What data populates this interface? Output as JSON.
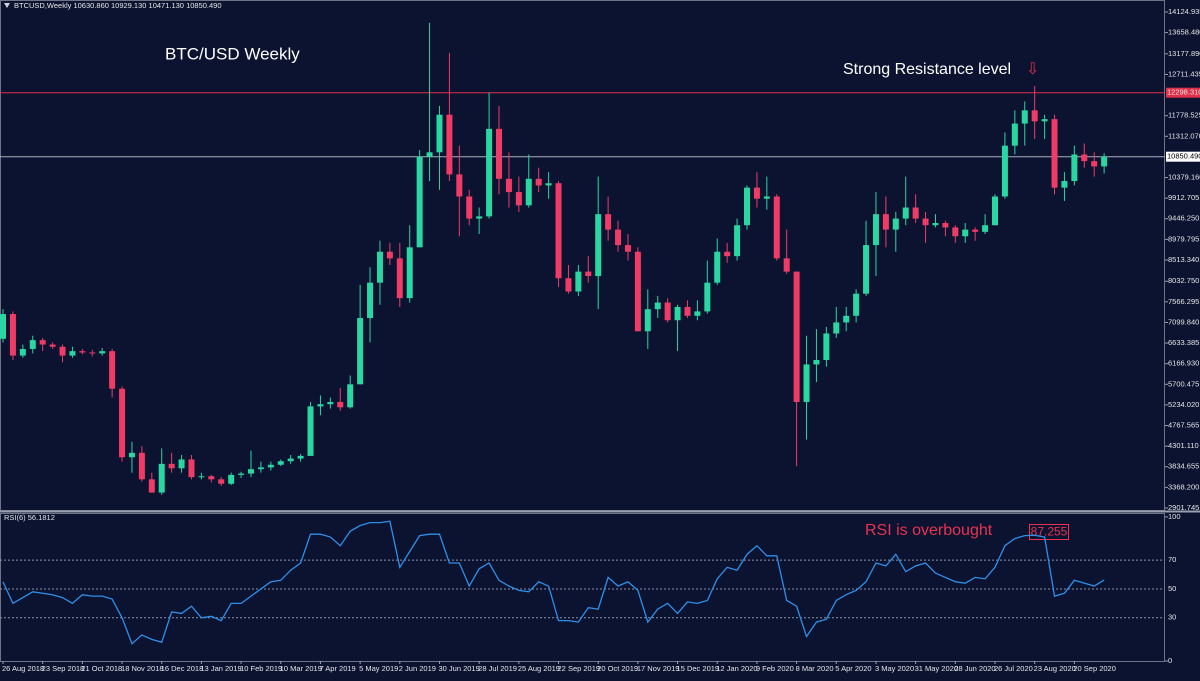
{
  "chart_data": {
    "type": "candlestick",
    "header": "BTCUSD,Weekly  10630.860 10929.130 10471.130 10850.490",
    "title": "BTC/USD Weekly",
    "annotation_resistance": "Strong Resistance level",
    "annotation_arrow": "⇩",
    "annotation_rsi": "RSI is overbought",
    "annotation_rsi_value": "87.255",
    "rsi_header": "RSI(6) 56.1812",
    "categories": [
      "26 Aug 2018",
      null,
      null,
      null,
      "23 Sep 2018",
      null,
      null,
      null,
      "21 Oct 2018",
      null,
      null,
      null,
      "18 Nov 2018",
      null,
      null,
      null,
      "16 Dec 2018",
      null,
      null,
      null,
      "13 Jan 2019",
      null,
      null,
      null,
      "10 Feb 2019",
      null,
      null,
      null,
      "10 Mar 2019",
      null,
      null,
      null,
      "7 Apr 2019",
      null,
      null,
      null,
      "5 May 2019",
      null,
      null,
      null,
      "2 Jun 2019",
      null,
      null,
      null,
      "30 Jun 2019",
      null,
      null,
      null,
      "28 Jul 2019",
      null,
      null,
      null,
      "25 Aug 2019",
      null,
      null,
      null,
      "22 Sep 2019",
      null,
      null,
      null,
      "20 Oct 2019",
      null,
      null,
      null,
      "17 Nov 2019",
      null,
      null,
      null,
      "15 Dec 2019",
      null,
      null,
      null,
      "12 Jan 2020",
      null,
      null,
      null,
      "9 Feb 2020",
      null,
      null,
      null,
      "8 Mar 2020",
      null,
      null,
      null,
      "5 Apr 2020",
      null,
      null,
      null,
      "3 May 2020",
      null,
      null,
      null,
      "31 May 2020",
      null,
      null,
      null,
      "28 Jun 2020",
      null,
      null,
      null,
      "26 Jul 2020",
      null,
      null,
      null,
      "23 Aug 2020",
      null,
      null,
      null,
      "20 Sep 2020",
      null,
      null,
      null
    ],
    "open": [
      6730,
      7290,
      6350,
      6500,
      6700,
      6600,
      6550,
      6350,
      6450,
      6420,
      6400,
      6450,
      5600,
      4050,
      4150,
      3550,
      3250,
      3900,
      3800,
      4000,
      3600,
      3620,
      3550,
      3450,
      3650,
      3680,
      3780,
      3820,
      3880,
      3960,
      4020,
      4080,
      5200,
      5250,
      5300,
      5180,
      5700,
      7200,
      8000,
      8700,
      8550,
      7650,
      8800,
      10850,
      10950,
      11800,
      10450,
      9950,
      9450,
      9500,
      11480,
      10350,
      10050,
      9750,
      10350,
      10200,
      10250,
      8100,
      7800,
      8250,
      8150,
      9550,
      9200,
      8850,
      8700,
      6900,
      7400,
      7550,
      7150,
      7450,
      7250,
      7350,
      8000,
      8700,
      8600,
      9300,
      10150,
      9900,
      9950,
      8550,
      8250,
      5300,
      6150,
      6250,
      6850,
      7100,
      7250,
      7750,
      8850,
      9550,
      9200,
      9450,
      9700,
      9450,
      9300,
      9350,
      9250,
      9050,
      9200,
      9150,
      9300,
      9950,
      11100,
      11600,
      11900,
      11650,
      11700,
      10150,
      10300,
      10900,
      10750,
      10630.86
    ],
    "high": [
      7400,
      7350,
      6600,
      6800,
      6750,
      6650,
      6600,
      6550,
      6500,
      6480,
      6520,
      6500,
      5650,
      4400,
      4300,
      3700,
      4250,
      4150,
      4100,
      4100,
      3700,
      3650,
      3600,
      3700,
      3720,
      4200,
      3950,
      3950,
      4000,
      4100,
      4120,
      5300,
      5450,
      5400,
      5620,
      5900,
      7950,
      8350,
      8950,
      8900,
      8900,
      9300,
      11000,
      13880,
      12000,
      13200,
      11100,
      10100,
      9700,
      12300,
      12000,
      10950,
      10400,
      10900,
      10600,
      10500,
      10300,
      8400,
      8400,
      8600,
      10400,
      9950,
      9400,
      9100,
      8800,
      7850,
      7700,
      7650,
      7500,
      7600,
      7600,
      8500,
      9000,
      8900,
      9450,
      10200,
      10500,
      10400,
      10000,
      9200,
      8250,
      6800,
      6950,
      7000,
      7450,
      7450,
      7850,
      9400,
      10050,
      9950,
      9600,
      10400,
      10000,
      9600,
      9550,
      9400,
      9300,
      9350,
      9250,
      9550,
      10000,
      11400,
      11900,
      12100,
      12450,
      11800,
      11800,
      10500,
      11100,
      11150,
      10950,
      10929.13
    ],
    "low": [
      6650,
      6250,
      6300,
      6400,
      6450,
      6500,
      6200,
      6300,
      6380,
      6330,
      6350,
      5400,
      3950,
      3700,
      3500,
      3250,
      3200,
      3700,
      3700,
      3550,
      3550,
      3480,
      3400,
      3420,
      3580,
      3600,
      3700,
      3750,
      3850,
      3900,
      3950,
      4080,
      5000,
      5150,
      5100,
      5150,
      5700,
      6650,
      7500,
      8400,
      7450,
      7550,
      8800,
      10300,
      10100,
      10300,
      9050,
      9300,
      9100,
      9450,
      10000,
      9700,
      9600,
      9700,
      10050,
      9900,
      7900,
      7750,
      7700,
      8000,
      7400,
      8950,
      8700,
      8500,
      6900,
      6500,
      7200,
      7100,
      6450,
      7200,
      7150,
      7300,
      7950,
      8450,
      8500,
      9200,
      9700,
      9650,
      8500,
      8200,
      3850,
      4450,
      5750,
      6100,
      6750,
      6900,
      7100,
      7700,
      8150,
      8800,
      8700,
      9300,
      9350,
      8900,
      9250,
      9050,
      8900,
      8900,
      8950,
      9100,
      9300,
      9900,
      10900,
      11100,
      11250,
      11250,
      10000,
      9850,
      10200,
      10600,
      10400,
      10471.13
    ],
    "close": [
      7290,
      6350,
      6500,
      6700,
      6600,
      6550,
      6350,
      6450,
      6420,
      6400,
      6450,
      5600,
      4050,
      4150,
      3550,
      3250,
      3900,
      3800,
      4000,
      3600,
      3620,
      3550,
      3450,
      3650,
      3680,
      3780,
      3820,
      3880,
      3960,
      4020,
      4080,
      5200,
      5250,
      5300,
      5180,
      5700,
      7200,
      8000,
      8700,
      8550,
      7650,
      8800,
      10850,
      10950,
      11800,
      10450,
      9950,
      9450,
      9500,
      11480,
      10350,
      10050,
      9750,
      10350,
      10200,
      10250,
      8100,
      7800,
      8250,
      8150,
      9550,
      9200,
      8850,
      8700,
      6900,
      7400,
      7550,
      7150,
      7450,
      7250,
      7350,
      8000,
      8700,
      8600,
      9300,
      10150,
      9900,
      9950,
      8550,
      8250,
      5300,
      6150,
      6250,
      6850,
      7100,
      7250,
      7750,
      8850,
      9550,
      9200,
      9450,
      9700,
      9450,
      9300,
      9350,
      9250,
      9050,
      9200,
      9150,
      9300,
      9950,
      11100,
      11600,
      11900,
      11650,
      11700,
      10150,
      10300,
      10900,
      10750,
      10630.86,
      10850.49
    ],
    "up_color": "#2ad6a1",
    "down_color": "#f03b66",
    "ylim": [
      2856,
      14396
    ],
    "yticks": [
      14124.935,
      {
        "value": 13658.48,
        "label": "13658.480"
      },
      {
        "value": 13177.89,
        "label": "13177.890"
      },
      12711.435,
      11778.525,
      {
        "value": 11312.07,
        "label": "11312.070"
      },
      {
        "value": 10379.16,
        "label": "10379.160"
      },
      9912.705,
      {
        "value": 9446.25,
        "label": "9446.250"
      },
      {
        "value": 8979.795,
        "label": "8979.795"
      },
      {
        "value": 8513.34,
        "label": "8513.340"
      },
      {
        "value": 8032.75,
        "label": "8032.750"
      },
      7566.295,
      {
        "value": 7099.84,
        "label": "7099.840"
      },
      {
        "value": 6633.385,
        "label": "6633.385"
      },
      {
        "value": 6166.93,
        "label": "6166.930"
      },
      {
        "value": 5700.475,
        "label": "5700.475"
      },
      {
        "value": 5234.02,
        "label": "5234.020"
      },
      4767.565,
      {
        "value": 4301.11,
        "label": "4301.110"
      },
      3834.655,
      {
        "value": 3368.2,
        "label": "3368.200"
      },
      2901.745
    ],
    "resistance": {
      "value": 12298.31,
      "label": "12298.310"
    },
    "resistance_color": "#e02f49",
    "current_price": {
      "value": 10850.49,
      "label": "10850.490"
    },
    "rsi": {
      "color": "#2f8fe8",
      "values": [
        55,
        40,
        44,
        48,
        47,
        46,
        44,
        40,
        46,
        45,
        45,
        43,
        30,
        12,
        18,
        15,
        13,
        34,
        33,
        38,
        30,
        31,
        28,
        40,
        40,
        45,
        50,
        55,
        56,
        63,
        68,
        88,
        88,
        86,
        80,
        90,
        94,
        96,
        96,
        97,
        65,
        76,
        87,
        88,
        88,
        68,
        68,
        52,
        64,
        68,
        56,
        52,
        49,
        48,
        55,
        52,
        28,
        28,
        27,
        37,
        36,
        58,
        52,
        55,
        49,
        27,
        36,
        40,
        33,
        41,
        40,
        42,
        57,
        65,
        63,
        74,
        80,
        73,
        73,
        42,
        38,
        17,
        27,
        29,
        42,
        46,
        49,
        55,
        68,
        66,
        74,
        62,
        66,
        68,
        61,
        58,
        55,
        54,
        58,
        57,
        65,
        80,
        85,
        87,
        87.255,
        86,
        45,
        47,
        56,
        54,
        52,
        56.1812
      ],
      "ylim": [
        0,
        102
      ],
      "yticks": [
        100,
        70,
        50,
        30,
        0
      ]
    }
  }
}
